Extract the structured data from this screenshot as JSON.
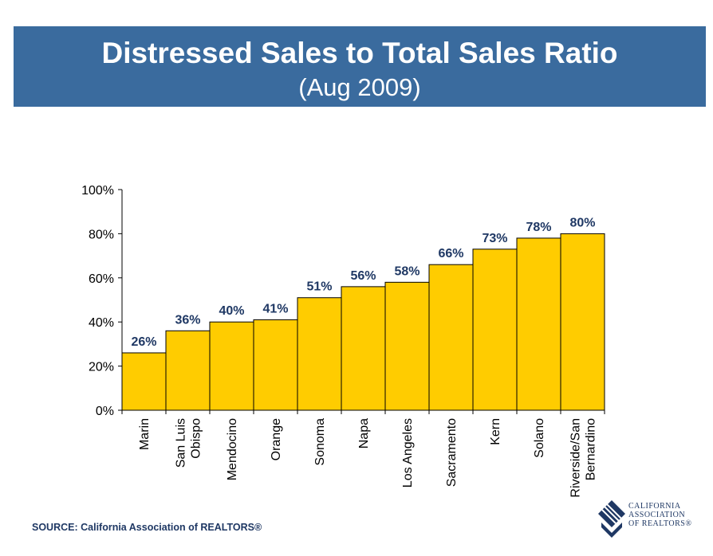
{
  "header": {
    "title": "Distressed Sales to Total Sales Ratio",
    "subtitle": "(Aug 2009)",
    "background_color": "#3a6b9e"
  },
  "chart_data": {
    "type": "bar",
    "categories": [
      "Marin",
      "San Luis\nObispo",
      "Mendocino",
      "Orange",
      "Sonoma",
      "Napa",
      "Los Angeles",
      "Sacramento",
      "Kern",
      "Solano",
      "Riverside/San\nBernardino"
    ],
    "values": [
      26,
      36,
      40,
      41,
      51,
      56,
      58,
      66,
      73,
      78,
      80
    ],
    "data_labels": [
      "26%",
      "36%",
      "40%",
      "41%",
      "51%",
      "56%",
      "58%",
      "66%",
      "73%",
      "78%",
      "80%"
    ],
    "y_ticks": [
      0,
      20,
      40,
      60,
      80,
      100
    ],
    "y_tick_labels": [
      "0%",
      "20%",
      "40%",
      "60%",
      "80%",
      "100%"
    ],
    "ylim": [
      0,
      100
    ],
    "grid": false,
    "bar_color": "#ffcc00",
    "label_color": "#1f3864"
  },
  "footer": {
    "source": "SOURCE: California Association of REALTORS®"
  },
  "logo": {
    "lines": [
      "CALIFORNIA",
      "ASSOCIATION",
      "OF REALTORS®"
    ],
    "icon": "car-logo-icon"
  }
}
